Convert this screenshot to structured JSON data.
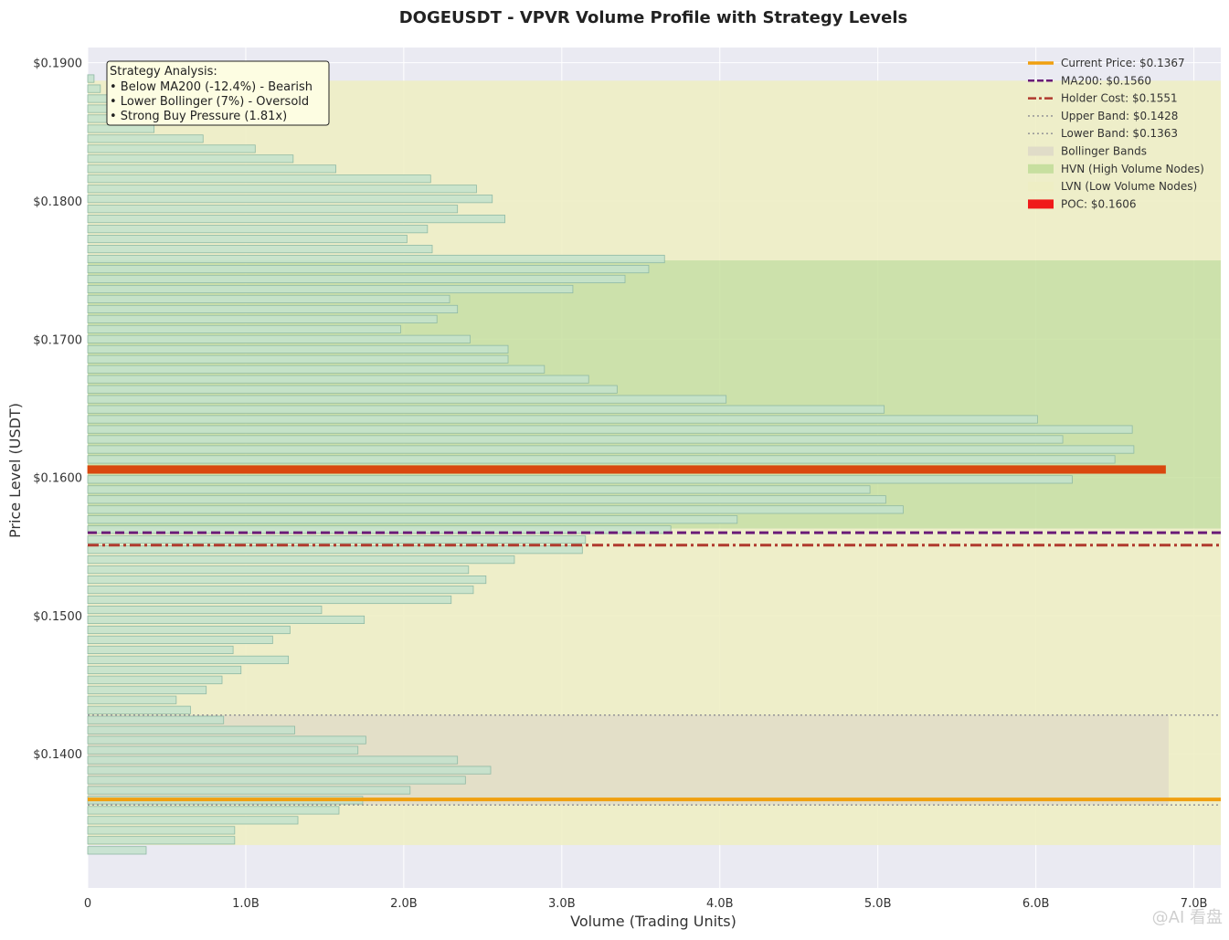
{
  "chart_data": {
    "type": "bar",
    "orientation": "horizontal",
    "title": "DOGEUSDT - VPVR Volume Profile with Strategy Levels",
    "xlabel": "Volume (Trading Units)",
    "ylabel": "Price Level (USDT)",
    "xlim": [
      0,
      7.17
    ],
    "ylim": [
      0.1303,
      0.1911
    ],
    "x_ticks": [
      0,
      1,
      2,
      3,
      4,
      5,
      6,
      7
    ],
    "x_tick_labels": [
      "0",
      "1.0B",
      "2.0B",
      "3.0B",
      "4.0B",
      "5.0B",
      "6.0B",
      "7.0B"
    ],
    "y_ticks": [
      0.14,
      0.15,
      0.16,
      0.17,
      0.18,
      0.19
    ],
    "y_tick_labels": [
      "$0.1400",
      "$0.1500",
      "$0.1600",
      "$0.1700",
      "$0.1800",
      "$0.1900"
    ],
    "x_unit_note": "volume in billions",
    "bin_height": 0.00055,
    "bins": [
      {
        "price": 0.18885,
        "volume": 0.04
      },
      {
        "price": 0.18812,
        "volume": 0.08
      },
      {
        "price": 0.1874,
        "volume": 0.2
      },
      {
        "price": 0.18667,
        "volume": 0.38
      },
      {
        "price": 0.18595,
        "volume": 0.52
      },
      {
        "price": 0.18522,
        "volume": 0.42
      },
      {
        "price": 0.1845,
        "volume": 0.73
      },
      {
        "price": 0.18377,
        "volume": 1.06
      },
      {
        "price": 0.18305,
        "volume": 1.3
      },
      {
        "price": 0.18232,
        "volume": 1.57
      },
      {
        "price": 0.1816,
        "volume": 2.17
      },
      {
        "price": 0.18087,
        "volume": 2.46
      },
      {
        "price": 0.18015,
        "volume": 2.56
      },
      {
        "price": 0.17942,
        "volume": 2.34
      },
      {
        "price": 0.1787,
        "volume": 2.64
      },
      {
        "price": 0.17797,
        "volume": 2.15
      },
      {
        "price": 0.17725,
        "volume": 2.02
      },
      {
        "price": 0.17652,
        "volume": 2.18
      },
      {
        "price": 0.1758,
        "volume": 3.65
      },
      {
        "price": 0.17507,
        "volume": 3.55
      },
      {
        "price": 0.17435,
        "volume": 3.4
      },
      {
        "price": 0.17362,
        "volume": 3.07
      },
      {
        "price": 0.1729,
        "volume": 2.29
      },
      {
        "price": 0.17217,
        "volume": 2.34
      },
      {
        "price": 0.17145,
        "volume": 2.21
      },
      {
        "price": 0.17072,
        "volume": 1.98
      },
      {
        "price": 0.17,
        "volume": 2.42
      },
      {
        "price": 0.16927,
        "volume": 2.66
      },
      {
        "price": 0.16855,
        "volume": 2.66
      },
      {
        "price": 0.16782,
        "volume": 2.89
      },
      {
        "price": 0.1671,
        "volume": 3.17
      },
      {
        "price": 0.16637,
        "volume": 3.35
      },
      {
        "price": 0.16565,
        "volume": 4.04
      },
      {
        "price": 0.16492,
        "volume": 5.04
      },
      {
        "price": 0.1642,
        "volume": 6.01
      },
      {
        "price": 0.16347,
        "volume": 6.61
      },
      {
        "price": 0.16275,
        "volume": 6.17
      },
      {
        "price": 0.16202,
        "volume": 6.62
      },
      {
        "price": 0.1613,
        "volume": 6.5
      },
      {
        "price": 0.16057,
        "volume": 6.82
      },
      {
        "price": 0.15985,
        "volume": 6.23
      },
      {
        "price": 0.15912,
        "volume": 4.95
      },
      {
        "price": 0.1584,
        "volume": 5.05
      },
      {
        "price": 0.15767,
        "volume": 5.16
      },
      {
        "price": 0.15695,
        "volume": 4.11
      },
      {
        "price": 0.15622,
        "volume": 3.69
      },
      {
        "price": 0.1555,
        "volume": 3.15
      },
      {
        "price": 0.15477,
        "volume": 3.13
      },
      {
        "price": 0.15405,
        "volume": 2.7
      },
      {
        "price": 0.15332,
        "volume": 2.41
      },
      {
        "price": 0.1526,
        "volume": 2.52
      },
      {
        "price": 0.15187,
        "volume": 2.44
      },
      {
        "price": 0.15115,
        "volume": 2.3
      },
      {
        "price": 0.15042,
        "volume": 1.48
      },
      {
        "price": 0.1497,
        "volume": 1.75
      },
      {
        "price": 0.14897,
        "volume": 1.28
      },
      {
        "price": 0.14825,
        "volume": 1.17
      },
      {
        "price": 0.14752,
        "volume": 0.92
      },
      {
        "price": 0.1468,
        "volume": 1.27
      },
      {
        "price": 0.14607,
        "volume": 0.97
      },
      {
        "price": 0.14535,
        "volume": 0.85
      },
      {
        "price": 0.14462,
        "volume": 0.75
      },
      {
        "price": 0.1439,
        "volume": 0.56
      },
      {
        "price": 0.14317,
        "volume": 0.65
      },
      {
        "price": 0.14245,
        "volume": 0.86
      },
      {
        "price": 0.14172,
        "volume": 1.31
      },
      {
        "price": 0.141,
        "volume": 1.76
      },
      {
        "price": 0.14027,
        "volume": 1.71
      },
      {
        "price": 0.13955,
        "volume": 2.34
      },
      {
        "price": 0.13882,
        "volume": 2.55
      },
      {
        "price": 0.1381,
        "volume": 2.39
      },
      {
        "price": 0.13737,
        "volume": 2.04
      },
      {
        "price": 0.13665,
        "volume": 1.74
      },
      {
        "price": 0.13592,
        "volume": 1.59
      },
      {
        "price": 0.1352,
        "volume": 1.33
      },
      {
        "price": 0.13447,
        "volume": 0.93
      },
      {
        "price": 0.13375,
        "volume": 0.93
      },
      {
        "price": 0.13302,
        "volume": 0.37
      }
    ],
    "levels": {
      "current_price": 0.1367,
      "ma200": 0.156,
      "holder_cost": 0.1551,
      "upper_band": 0.1428,
      "lower_band": 0.1363,
      "poc": 0.1606
    },
    "zones": {
      "lvn_upper": [
        0.1757,
        0.1887
      ],
      "hvn": [
        0.1563,
        0.1757
      ],
      "lvn_lower": [
        0.1334,
        0.1563
      ],
      "bollinger": [
        0.1363,
        0.1428
      ],
      "bollinger_x_end": 6.84
    },
    "legend": {
      "position": "top-right",
      "entries": [
        {
          "key": "current",
          "label": "Current Price: $0.1367"
        },
        {
          "key": "ma200",
          "label": "MA200: $0.1560"
        },
        {
          "key": "holder",
          "label": "Holder Cost: $0.1551"
        },
        {
          "key": "upper",
          "label": "Upper Band: $0.1428"
        },
        {
          "key": "lower",
          "label": "Lower Band: $0.1363"
        },
        {
          "key": "bollinger",
          "label": "Bollinger Bands"
        },
        {
          "key": "hvn",
          "label": "HVN (High Volume Nodes)"
        },
        {
          "key": "lvn",
          "label": "LVN (Low Volume Nodes)"
        },
        {
          "key": "poc",
          "label": "POC: $0.1606"
        }
      ]
    },
    "annotation": {
      "position": "top-left",
      "lines": [
        "Strategy Analysis:",
        "• Below MA200 (-12.4%) - Bearish",
        "• Lower Bollinger (7%) - Oversold",
        "• Strong Buy Pressure (1.81x)"
      ]
    },
    "colors": {
      "plot_bg": "#eaeaf2",
      "grid": "#ffffff",
      "bar_fill": "#c3e2cd",
      "bar_edge": "#8fb9a4",
      "poc": "#d9480f",
      "poc_legend": "#f01a1a",
      "current": "#f0a010",
      "ma200": "#6a1b78",
      "holder": "#b03a2e",
      "band": "#9a9a9a",
      "hvn_zone": "#c7df9f",
      "lvn_zone": "#eeeec4",
      "bollinger_zone": "#e0dcc8",
      "annotation_bg": "#fdfde2"
    }
  },
  "watermark": "@AI 看盘"
}
